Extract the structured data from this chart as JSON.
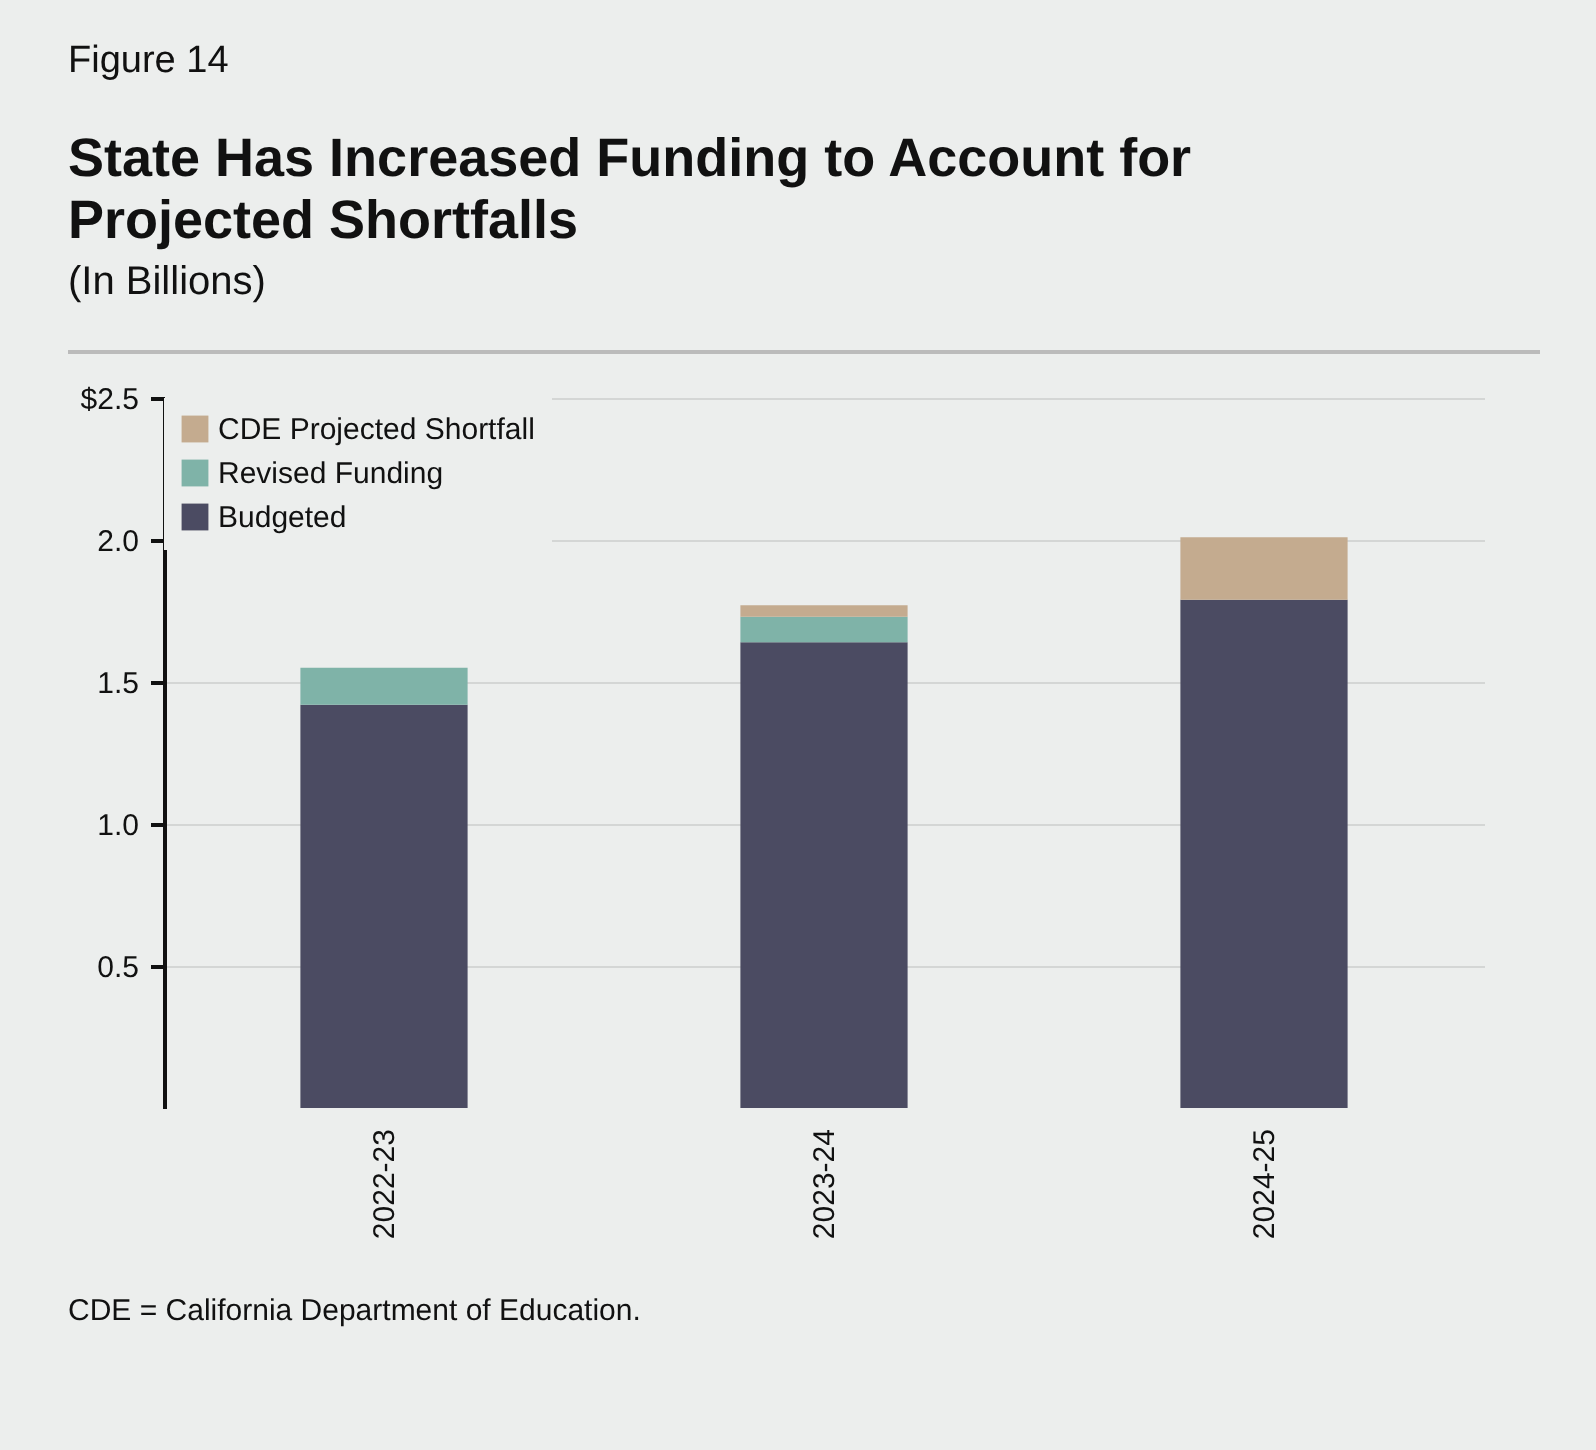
{
  "chart_data": {
    "type": "bar",
    "title": "State Has Increased Funding to Account for Projected Shortfalls",
    "subtitle": "(In Billions)",
    "annotations": [
      "Figure 14",
      "CDE = California Department of Education."
    ],
    "categories": [
      "2022-23",
      "2023-24",
      "2024-25"
    ],
    "stacked": true,
    "series": [
      {
        "name": "Budgeted",
        "color": "#4b4b62",
        "values": [
          1.42,
          1.64,
          1.79
        ]
      },
      {
        "name": "Revised Funding",
        "color": "#7fb3a8",
        "values": [
          0.13,
          0.09,
          null
        ]
      },
      {
        "name": "CDE Projected Shortfall",
        "color": "#c4ab8f",
        "values": [
          null,
          0.04,
          0.22
        ]
      }
    ],
    "ylim": [
      0,
      2.5
    ],
    "yticks": [
      {
        "value": 0.5,
        "label": "0.5"
      },
      {
        "value": 1,
        "label": "1.0"
      },
      {
        "value": 1.5,
        "label": "1.5"
      },
      {
        "value": 2,
        "label": "2.0"
      },
      {
        "value": 2.5,
        "label": "$2.5"
      }
    ],
    "grid": "y",
    "legend": "top left"
  }
}
